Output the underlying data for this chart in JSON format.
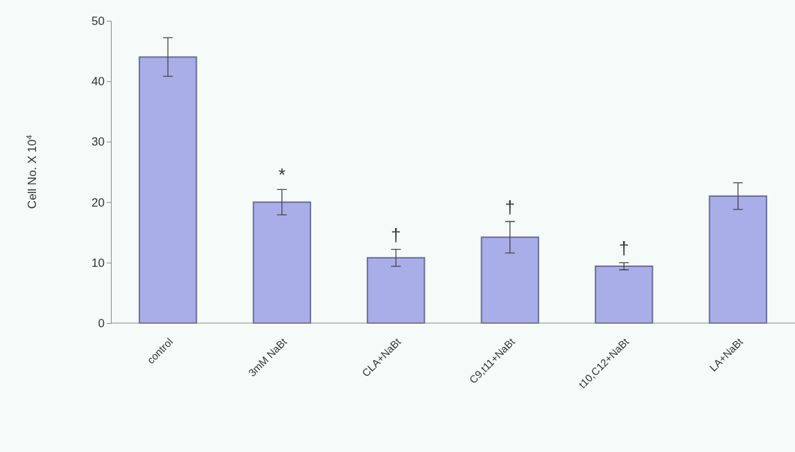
{
  "chart_data": {
    "type": "bar",
    "ylabel": "Cell No. X 10$^{4}$",
    "categories": [
      "control",
      "3mM NaBt",
      "CLA+NaBt",
      "C9,t11+NaBt",
      "t10,C12+NaBt",
      "LA+NaBt"
    ],
    "values": [
      44,
      20,
      10.8,
      14.2,
      9.4,
      21
    ],
    "errors": [
      3.2,
      2.1,
      1.4,
      2.6,
      0.6,
      2.2
    ],
    "color": "#a9ade8",
    "ylim": [
      0,
      50
    ],
    "yticks": [
      0,
      10,
      20,
      30,
      40,
      50
    ],
    "annotations": [
      {
        "text": "*",
        "x": "3mM NaBt",
        "y": 22.1
      },
      {
        "text": "†",
        "x": "CLA+NaBt",
        "y": 12.2
      },
      {
        "text": "†",
        "x": "C9,t11+NaBt",
        "y": 16.8
      },
      {
        "text": "†",
        "x": "t10,C12+NaBt",
        "y": 10
      }
    ]
  }
}
